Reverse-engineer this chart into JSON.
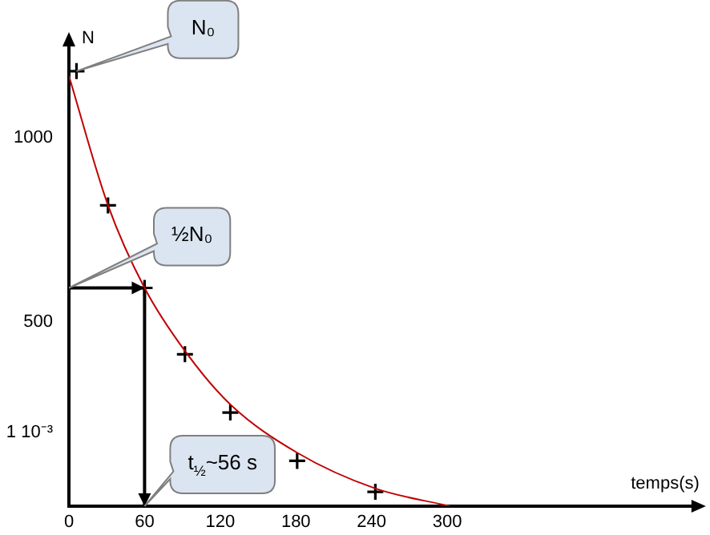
{
  "chart_data": {
    "type": "scatter",
    "xlabel": "temps(s)",
    "ylabel": "N",
    "xlim": [
      0,
      500
    ],
    "xticks": [
      0,
      60,
      120,
      180,
      240,
      300
    ],
    "ylim": [
      0,
      1260
    ],
    "yticks": [
      {
        "value": 200,
        "label": "1 10⁻³"
      },
      500,
      1000
    ],
    "grid": false,
    "legend": false,
    "series": [
      {
        "type": "line",
        "color": "#c00000",
        "marker": "none",
        "x": [
          0,
          31,
          60,
          92,
          128,
          181,
          243,
          302
        ],
        "values": [
          1167,
          816,
          592,
          421,
          276,
          145,
          48,
          0
        ]
      },
      {
        "color": "#000000",
        "marker": "cross",
        "x": [
          6,
          31,
          60,
          92,
          128,
          181,
          243
        ],
        "values": [
          1180,
          816,
          592,
          412,
          254,
          123,
          39
        ]
      },
      {
        "type": "line",
        "color": "#000000",
        "marker": "none",
        "x": [
          0,
          60,
          60
        ],
        "values": [
          592,
          592,
          0
        ]
      }
    ],
    "annotations": [
      "N₀",
      "½N₀",
      {
        "text": "t$_{½}$~56 s",
        "x": 60,
        "y": 0
      }
    ]
  }
}
